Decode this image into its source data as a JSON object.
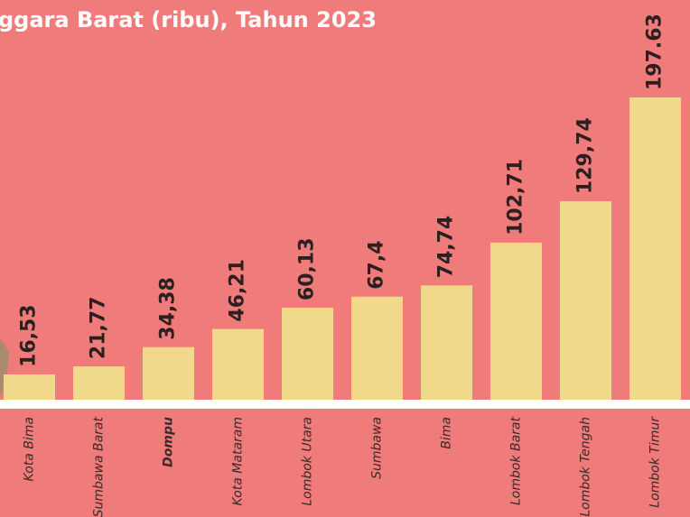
{
  "chart_data": {
    "type": "bar",
    "title": "ggara Barat (ribu), Tahun 2023",
    "categories": [
      "Kota Bima",
      "Sumbawa Barat",
      "Dompu",
      "Kota Mataram",
      "Lombok Utara",
      "Sumbawa",
      "Bima",
      "Lombok Barat",
      "Lombok Tengah",
      "Lombok Timur"
    ],
    "values": [
      16.53,
      21.77,
      34.38,
      46.21,
      60.13,
      67.4,
      74.74,
      102.71,
      129.74,
      197.63
    ],
    "value_labels": [
      "16,53",
      "21,77",
      "34,38",
      "46,21",
      "60,13",
      "67,4",
      "74,74",
      "102,71",
      "129,74",
      "197.63"
    ],
    "color": "#f0d98a",
    "background": "#f07b7b",
    "highlight_category": "Dompu"
  }
}
